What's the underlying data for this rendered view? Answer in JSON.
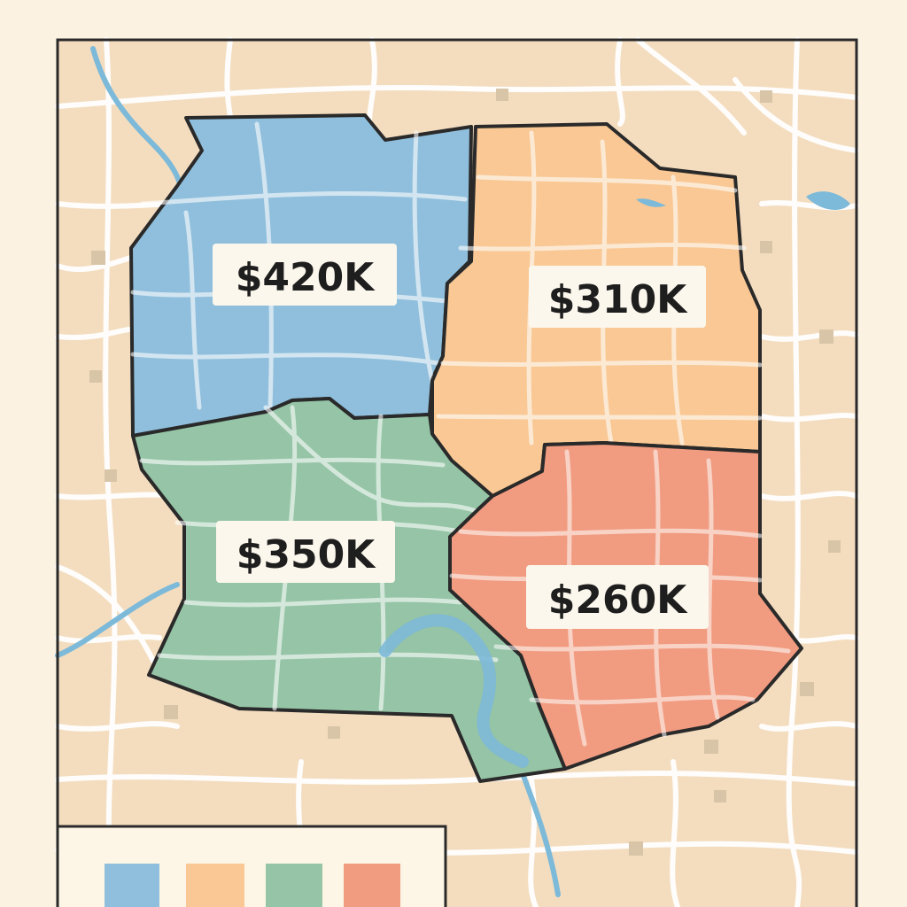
{
  "map": {
    "colors": {
      "background": "#fbf2e1",
      "land": "#f4ddbf",
      "roads": "#ffffff",
      "water": "#7db9d8",
      "block": "#d8c5a8",
      "border": "#2a2a2a"
    },
    "regions": [
      {
        "id": "northwest",
        "label": "$420K",
        "color": "#8fbfdc"
      },
      {
        "id": "northeast",
        "label": "$310K",
        "color": "#f9c894"
      },
      {
        "id": "southwest",
        "label": "$350K",
        "color": "#95c4a6"
      },
      {
        "id": "southeast",
        "label": "$260K",
        "color": "#f19b80"
      }
    ]
  },
  "legend": {
    "swatches": [
      {
        "color": "#8fbfdc"
      },
      {
        "color": "#f9c894"
      },
      {
        "color": "#95c4a6"
      },
      {
        "color": "#f19b80"
      }
    ]
  }
}
